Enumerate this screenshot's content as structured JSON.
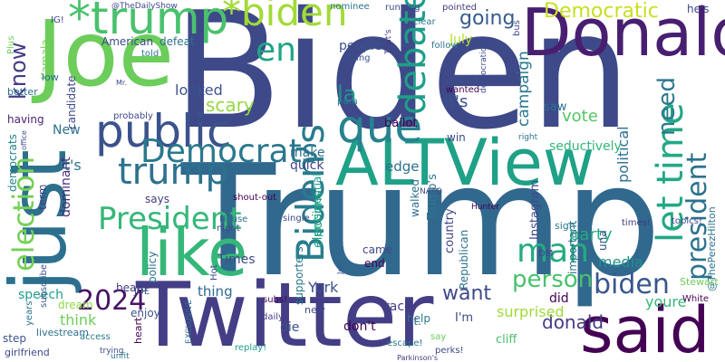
{
  "words": [
    {
      "text": "Biden",
      "color": "#3e4989"
    },
    {
      "text": "Trump",
      "color": "#31688e"
    },
    {
      "text": "Joe",
      "color": "#6ccd5a"
    },
    {
      "text": "Twitter",
      "color": "#433e85"
    },
    {
      "text": "just",
      "color": "#2d708e"
    },
    {
      "text": "said",
      "color": "#440154"
    },
    {
      "text": "Donald",
      "color": "#481f70"
    },
    {
      "text": "ALTView",
      "color": "#1fa187"
    },
    {
      "text": "like",
      "color": "#35b779"
    },
    {
      "text": "*trump",
      "color": "#4ac16d"
    },
    {
      "text": "*biden",
      "color": "#a2da37"
    },
    {
      "text": "public",
      "color": "#3b528b"
    },
    {
      "text": "trump",
      "color": "#2c728e"
    },
    {
      "text": "Democrats",
      "color": "#2a788e"
    },
    {
      "text": "President",
      "color": "#35b779"
    },
    {
      "text": "que",
      "color": "#26828e"
    },
    {
      "text": "Biden's",
      "color": "#287d8e"
    },
    {
      "text": "debate",
      "color": "#1f9e89"
    },
    {
      "text": "let time",
      "color": "#22a884"
    },
    {
      "text": "president",
      "color": "#2c728e"
    },
    {
      "text": "election",
      "color": "#75d054"
    },
    {
      "text": "biden",
      "color": "#39568c"
    },
    {
      "text": "2024",
      "color": "#471365"
    },
    {
      "text": "en",
      "color": "#20a486"
    },
    {
      "text": "person",
      "color": "#48c16e"
    },
    {
      "text": "man",
      "color": "#25ab82"
    },
    {
      "text": "know",
      "color": "#433d84"
    },
    {
      "text": "going",
      "color": "#375b8d"
    },
    {
      "text": "Democratic",
      "color": "#c8e020"
    },
    {
      "text": "la",
      "color": "#1f968b"
    },
    {
      "text": "need",
      "color": "#2a788e"
    },
    {
      "text": "want",
      "color": "#3e4a89"
    },
    {
      "text": "it's",
      "color": "#3b528b"
    },
    {
      "text": "campaign",
      "color": "#2a788e"
    },
    {
      "text": "vote",
      "color": "#56c667"
    },
    {
      "text": "looked",
      "color": "#3a548c"
    },
    {
      "text": "scary",
      "color": "#95d840"
    },
    {
      "text": "democrats",
      "color": "#26828e"
    },
    {
      "text": "elections",
      "color": "#22a884"
    },
    {
      "text": "party",
      "color": "#25ab82"
    },
    {
      "text": "political",
      "color": "#2d708e"
    },
    {
      "text": "donald",
      "color": "#443a83"
    },
    {
      "text": "media",
      "color": "#21918c"
    },
    {
      "text": "youre",
      "color": "#35b779"
    },
    {
      "text": "York",
      "color": "#3b528b"
    },
    {
      "text": "surprised",
      "color": "#9fda3a"
    },
    {
      "text": "thing",
      "color": "#31688e"
    },
    {
      "text": "Times",
      "color": "#3e4989"
    },
    {
      "text": "edge",
      "color": "#2c728e"
    },
    {
      "text": "quick",
      "color": "#414487"
    },
    {
      "text": "It's",
      "color": "#2a788e"
    },
    {
      "text": "New",
      "color": "#2d708e"
    },
    {
      "text": "July",
      "color": "#b5de2b"
    },
    {
      "text": "people",
      "color": "#3b528b"
    },
    {
      "text": "American",
      "color": "#3e4989"
    },
    {
      "text": "defeat",
      "color": "#2c728e"
    },
    {
      "text": "ballot",
      "color": "#440154"
    },
    {
      "text": "Kamala",
      "color": "#75d054"
    },
    {
      "text": "@TheDailyShow",
      "color": "#3e4989"
    },
    {
      "text": "dominant",
      "color": "#472c7a"
    },
    {
      "text": "term",
      "color": "#433e85"
    },
    {
      "text": "speech",
      "color": "#1f9e89"
    },
    {
      "text": "think",
      "color": "#6ccd5a"
    },
    {
      "text": "dream",
      "color": "#8ed645"
    },
    {
      "text": "livestream",
      "color": "#2c728e"
    },
    {
      "text": "step",
      "color": "#3b528b"
    },
    {
      "text": "girlfriend",
      "color": "#3e4989"
    },
    {
      "text": "beard",
      "color": "#433e85"
    },
    {
      "text": "policy",
      "color": "#2c728e"
    },
    {
      "text": "heart",
      "color": "#440154"
    },
    {
      "text": "die",
      "color": "#3b528b"
    },
    {
      "text": "don't",
      "color": "#440154"
    },
    {
      "text": "cliff",
      "color": "#48c16e"
    },
    {
      "text": "did",
      "color": "#440154"
    },
    {
      "text": "I'm",
      "color": "#3e4989"
    },
    {
      "text": "Republican",
      "color": "#2c728e"
    },
    {
      "text": "country",
      "color": "#414487"
    },
    {
      "text": "Trump's",
      "color": "#2a788e"
    },
    {
      "text": "walked",
      "color": "#2d708e"
    },
    {
      "text": "supporters",
      "color": "#2a788e"
    },
    {
      "text": "presidential",
      "color": "#1f9e89"
    },
    {
      "text": "Instagram",
      "color": "#3e4989"
    },
    {
      "text": "important",
      "color": "#2c728e"
    },
    {
      "text": "seductively",
      "color": "#35b779"
    },
    {
      "text": "having",
      "color": "#481f70"
    },
    {
      "text": "candidate",
      "color": "#3e4989"
    },
    {
      "text": "says",
      "color": "#433e85"
    },
    {
      "text": "enjoy",
      "color": "#3b528b"
    },
    {
      "text": "make",
      "color": "#2d708e"
    },
    {
      "text": "race",
      "color": "#433e85"
    },
    {
      "text": "help",
      "color": "#2a788e"
    },
    {
      "text": "end",
      "color": "#440154"
    },
    {
      "text": "came",
      "color": "#3e4989"
    },
    {
      "text": "una",
      "color": "#3b528b"
    },
    {
      "text": "saw",
      "color": "#2c728e"
    },
    {
      "text": "win",
      "color": "#3e4989"
    },
    {
      "text": "@ThePerezHilton",
      "color": "#2c728e"
    },
    {
      "text": "he's",
      "color": "#3e4989"
    },
    {
      "text": "Stewart",
      "color": "#6ccd5a"
    },
    {
      "text": "White",
      "color": "#440154"
    },
    {
      "text": "topics!",
      "color": "#3e4989"
    },
    {
      "text": "times!",
      "color": "#443a83"
    },
    {
      "text": "sign",
      "color": "#2a788e"
    },
    {
      "text": "DM",
      "color": "#3e4989"
    },
    {
      "text": "it.",
      "color": "#3b528b"
    },
    {
      "text": "perks!",
      "color": "#3e4989"
    },
    {
      "text": "escape!",
      "color": "#2a788e"
    },
    {
      "text": "replay!",
      "color": "#1f9e89"
    },
    {
      "text": "subs!",
      "color": "#440154"
    },
    {
      "text": "daily",
      "color": "#443a83"
    },
    {
      "text": "new",
      "color": "#3e4989"
    },
    {
      "text": "House",
      "color": "#2c728e"
    },
    {
      "text": "night",
      "color": "#3e4989"
    },
    {
      "text": "shout-out",
      "color": "#440154"
    },
    {
      "text": "single",
      "color": "#3e4989"
    },
    {
      "text": "EXCLUSIVE",
      "color": "#2c728e"
    },
    {
      "text": "JOE",
      "color": "#3b528b"
    },
    {
      "text": "Hot",
      "color": "#3e4989"
    },
    {
      "text": "better",
      "color": "#2c728e"
    },
    {
      "text": "low",
      "color": "#2d708e"
    },
    {
      "text": "Plus",
      "color": "#6ccd5a"
    },
    {
      "text": "IG!",
      "color": "#3e4989"
    },
    {
      "text": "told",
      "color": "#2a788e"
    },
    {
      "text": "giving",
      "color": "#3b528b"
    },
    {
      "text": "nominee",
      "color": "#2c728e"
    },
    {
      "text": "running",
      "color": "#3e4989"
    },
    {
      "text": "clear",
      "color": "#2a788e"
    },
    {
      "text": "pointed",
      "color": "#443a83"
    },
    {
      "text": "bus",
      "color": "#3e4989"
    },
    {
      "text": "follow",
      "color": "#2c728e"
    },
    {
      "text": "wanted",
      "color": "#440154"
    },
    {
      "text": "CLICK",
      "color": "#3b528b"
    },
    {
      "text": "para",
      "color": "#2a788e"
    },
    {
      "text": "democratic",
      "color": "#3e4989"
    },
    {
      "text": "That's",
      "color": "#443a83"
    },
    {
      "text": "probably",
      "color": "#3e4989"
    },
    {
      "text": "years",
      "color": "#2c728e"
    },
    {
      "text": "subscribe",
      "color": "#3b528b"
    },
    {
      "text": "access",
      "color": "#2a788e"
    },
    {
      "text": "NATO",
      "color": "#3e4989"
    },
    {
      "text": "Parkinson's",
      "color": "#443a83"
    },
    {
      "text": "trying",
      "color": "#3e4989"
    },
    {
      "text": "unfit",
      "color": "#2c728e"
    },
    {
      "text": "office",
      "color": "#3e4989"
    },
    {
      "text": "Hunter",
      "color": "#440154"
    },
    {
      "text": "Jon",
      "color": "#3b528b"
    },
    {
      "text": "say",
      "color": "#6ccd5a"
    },
    {
      "text": "right",
      "color": "#2c728e"
    },
    {
      "text": "Mr.",
      "color": "#3e4989"
    }
  ]
}
